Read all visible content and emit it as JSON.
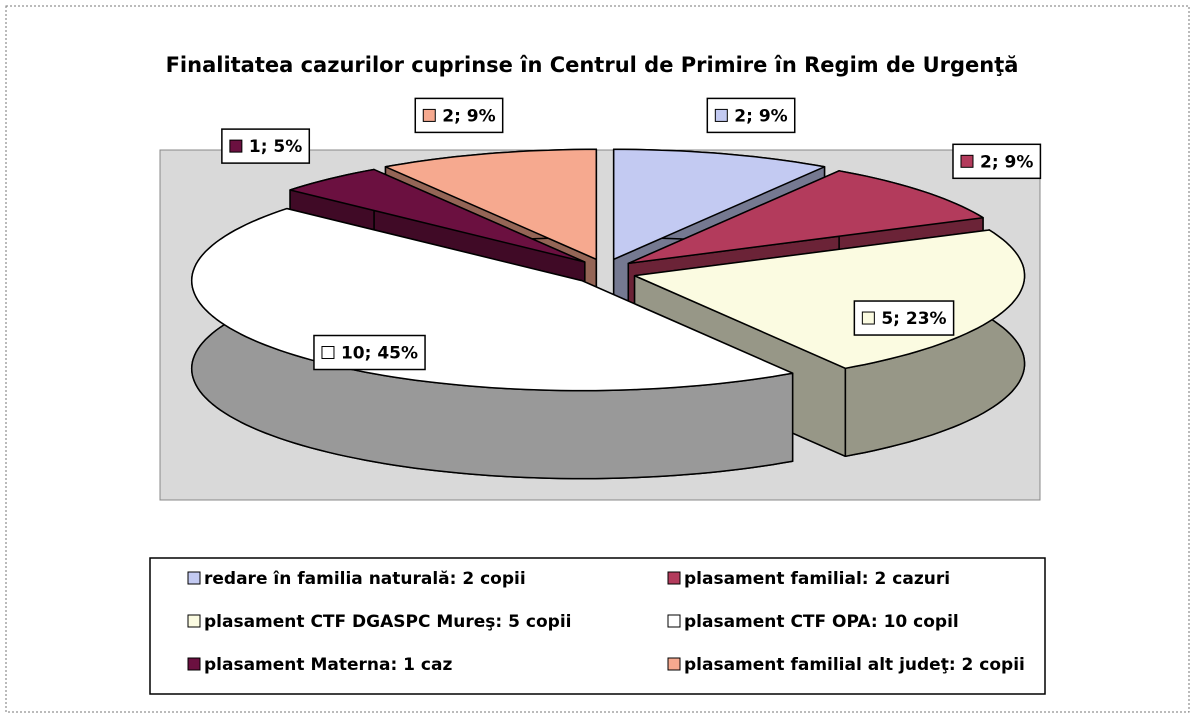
{
  "chart_data": {
    "type": "pie",
    "title": "Finalitatea cazurilor cuprinse în Centrul de Primire în Regim de Urgenţă",
    "categories": [
      "redare în familia naturală: 2 copii",
      "plasament familial: 2 cazuri",
      "plasament CTF DGASPC Mureş: 5 copii",
      "plasament CTF OPA: 10 copil",
      "plasament Materna: 1 caz",
      "plasament familial alt judeţ: 2 copii"
    ],
    "values": [
      2,
      2,
      5,
      10,
      1,
      2
    ],
    "value_labels": [
      "2; 9%",
      "2; 9%",
      "5; 23%",
      "10; 45%",
      "1; 5%",
      "2; 9%"
    ],
    "colors": [
      "#c3caf2",
      "#b33b5c",
      "#fbfbe1",
      "#ffffff",
      "#6b1040",
      "#f6a98f"
    ],
    "legend": "bottom"
  }
}
